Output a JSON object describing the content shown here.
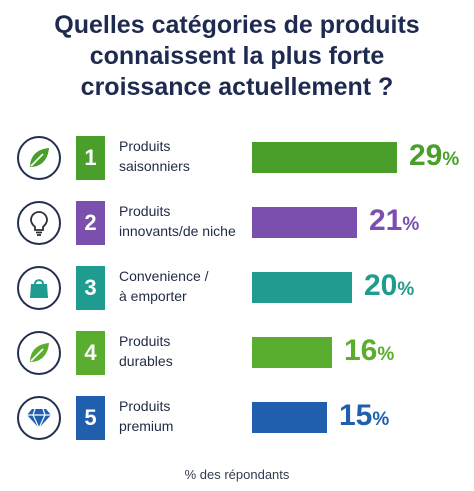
{
  "title": {
    "line1": "Quelles catégories de produits",
    "line2": "connaissent la plus forte",
    "line3": "croissance actuellement ?"
  },
  "footnote": "% des répondants",
  "chart_data": {
    "type": "bar",
    "orientation": "horizontal",
    "title": "Quelles catégories de produits connaissent la plus forte croissance actuellement ?",
    "categories": [
      "Produits saisonniers",
      "Produits innovants/de niche",
      "Convenience / à emporter",
      "Produits durables",
      "Produits premium"
    ],
    "values": [
      29,
      21,
      20,
      16,
      15
    ],
    "unit": "%",
    "xlim": [
      0,
      30
    ],
    "grid": false,
    "legend": "none",
    "footnote": "% des répondants",
    "rows": [
      {
        "rank": "1",
        "label_lines": [
          "Produits",
          "saisonniers"
        ],
        "value": 29,
        "value_text": "29",
        "icon": "leaf-icon",
        "color": "#4a9e2a"
      },
      {
        "rank": "2",
        "label_lines": [
          "Produits",
          "innovants/de niche"
        ],
        "value": 21,
        "value_text": "21",
        "icon": "lightbulb-icon",
        "color": "#7b4fae"
      },
      {
        "rank": "3",
        "label_lines": [
          "Convenience /",
          "à emporter"
        ],
        "value": 20,
        "value_text": "20",
        "icon": "shopping-bag-icon",
        "color": "#1f9b8f"
      },
      {
        "rank": "4",
        "label_lines": [
          "Produits",
          "durables"
        ],
        "value": 16,
        "value_text": "16",
        "icon": "leaf-icon",
        "color": "#5aad2f"
      },
      {
        "rank": "5",
        "label_lines": [
          "Produits",
          "premium"
        ],
        "value": 15,
        "value_text": "15",
        "icon": "diamond-icon",
        "color": "#1f5fae"
      }
    ],
    "percent_sign": "%"
  }
}
